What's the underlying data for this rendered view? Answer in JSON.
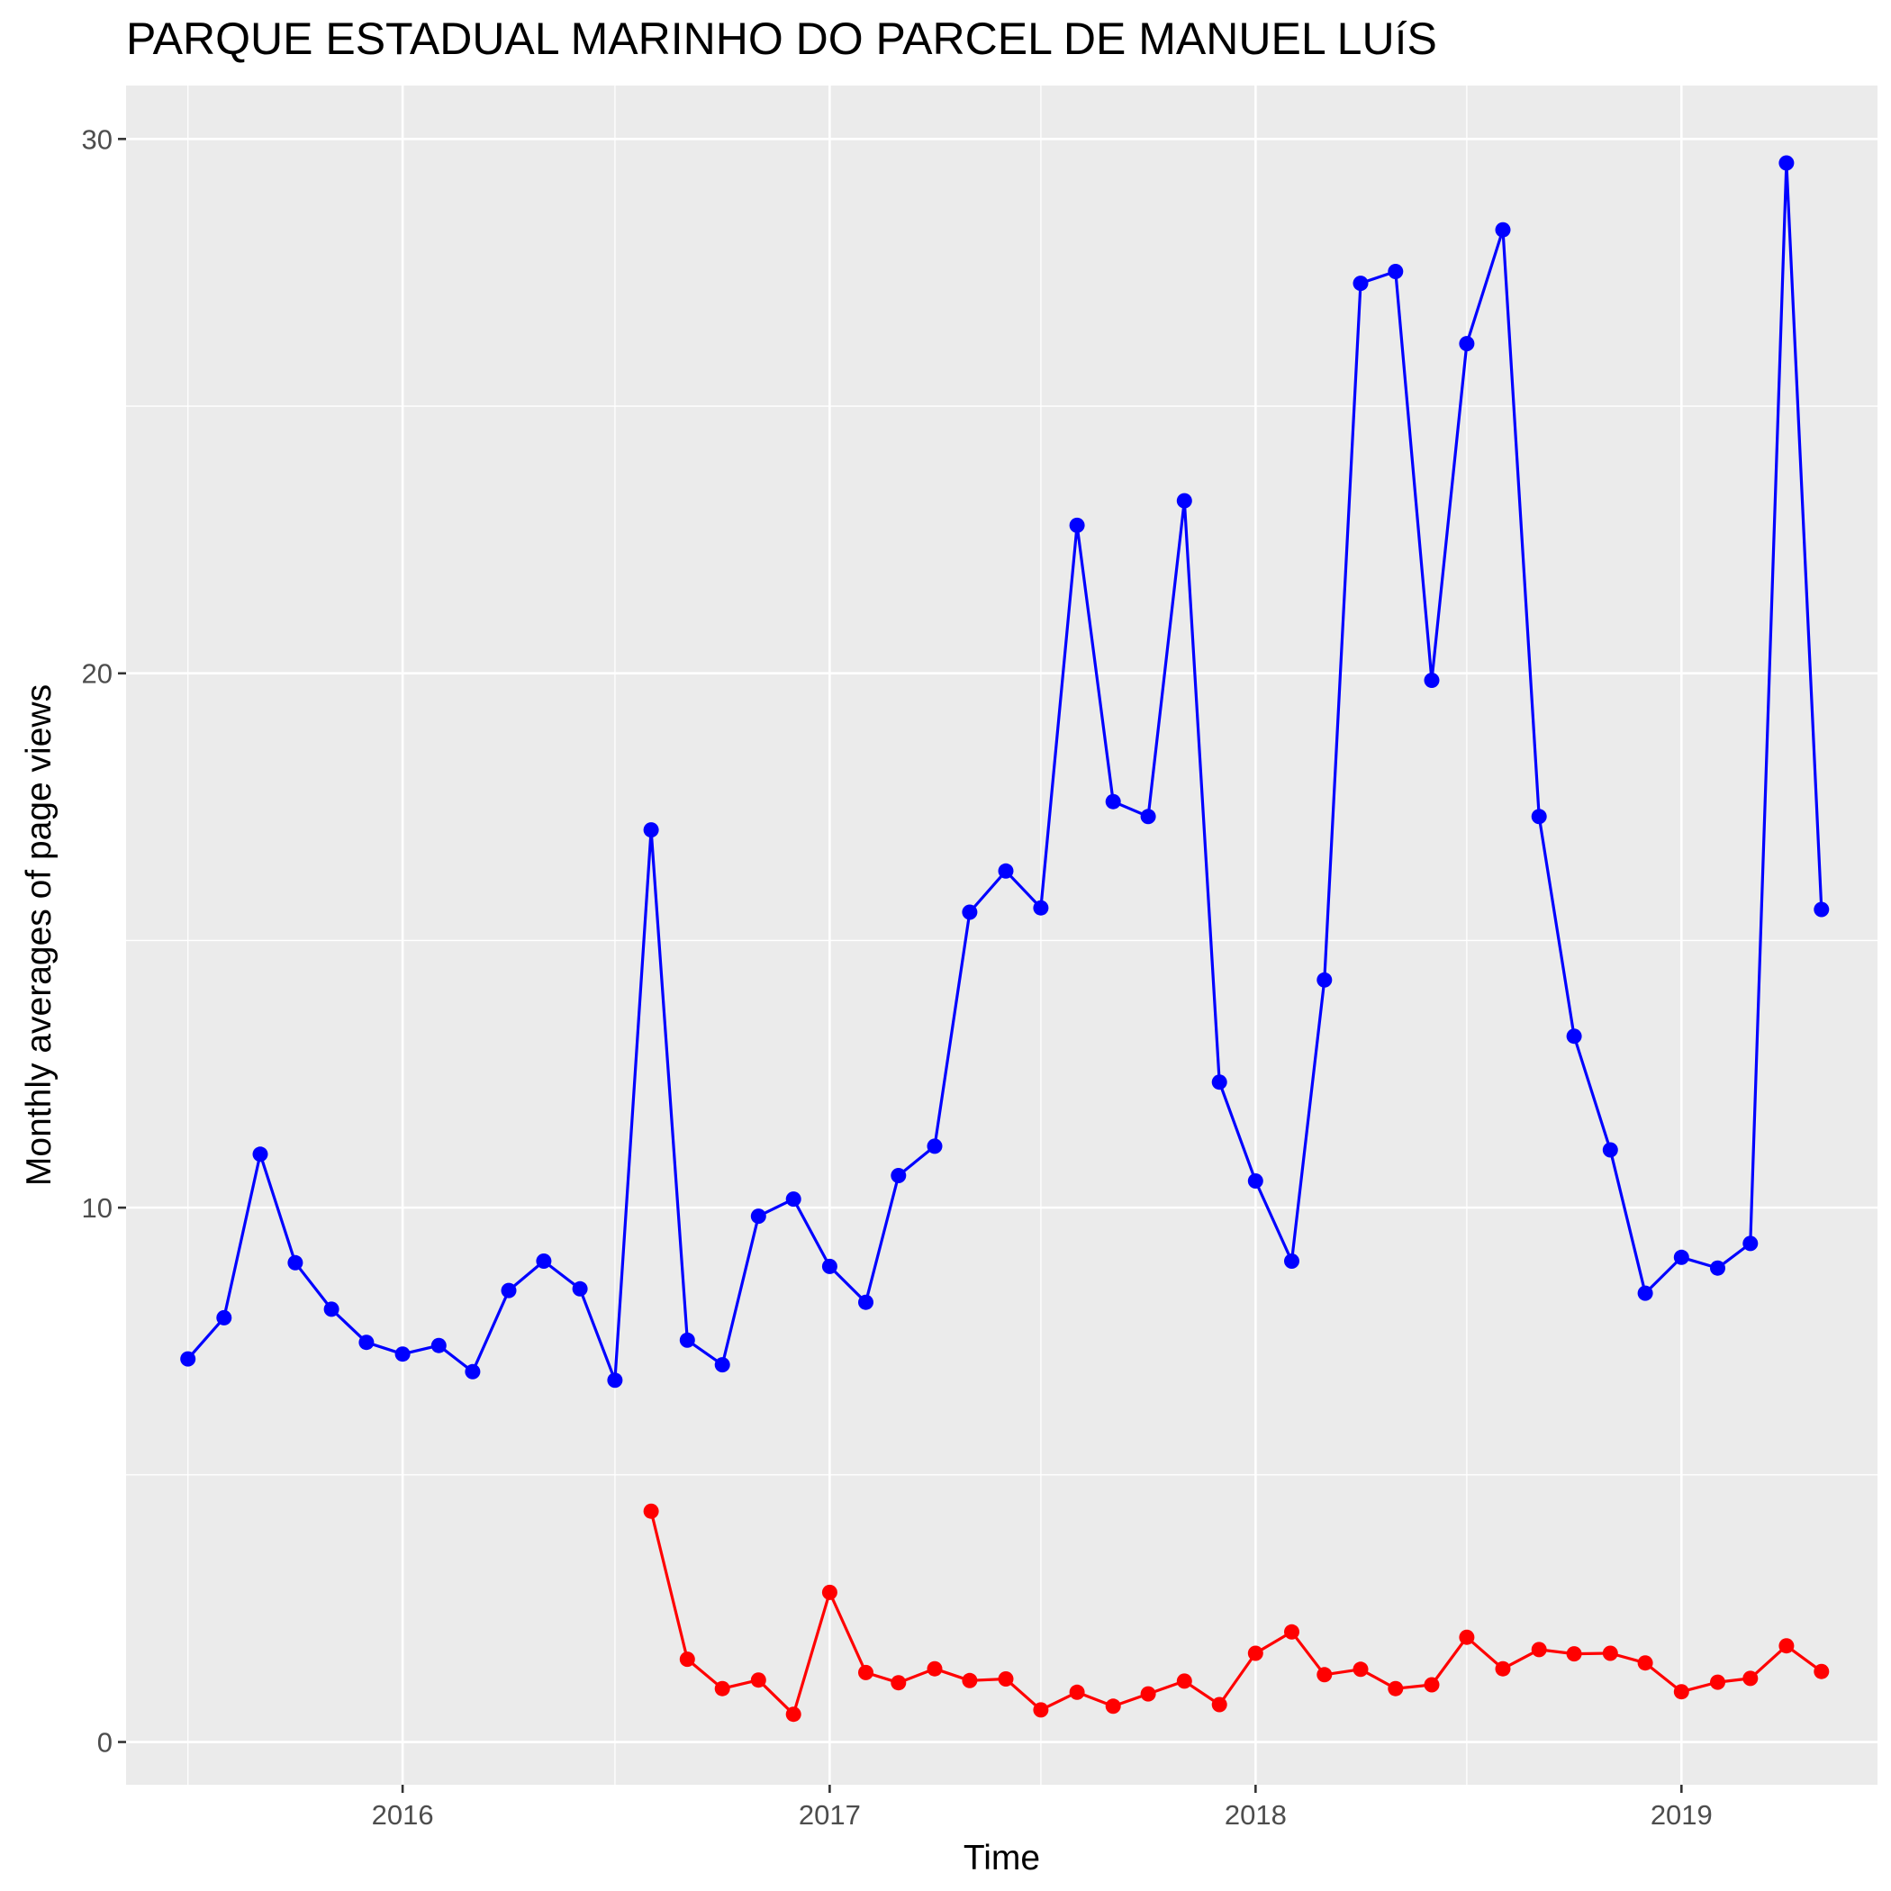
{
  "chart_data": {
    "type": "line",
    "title": "PARQUE ESTADUAL MARINHO DO PARCEL DE MANUEL LUíS",
    "xlabel": "Time",
    "ylabel": "Monthly averages of page views",
    "x_ticks": [
      "2016",
      "2017",
      "2018",
      "2019"
    ],
    "y_ticks": [
      0,
      10,
      20,
      30
    ],
    "ylim": [
      -0.8,
      31.0
    ],
    "xlim": [
      "2015-05-09",
      "2019-06-18"
    ],
    "grid": true,
    "background": "#ebebeb",
    "series": [
      {
        "color": "#0000ff",
        "x": [
          "2015-07-01",
          "2015-08-01",
          "2015-09-01",
          "2015-10-01",
          "2015-11-01",
          "2015-12-01",
          "2016-01-01",
          "2016-02-01",
          "2016-03-01",
          "2016-04-01",
          "2016-05-01",
          "2016-06-01",
          "2016-07-01",
          "2016-08-01",
          "2016-09-01",
          "2016-10-01",
          "2016-11-01",
          "2016-12-01",
          "2017-01-01",
          "2017-02-01",
          "2017-03-01",
          "2017-04-01",
          "2017-05-01",
          "2017-06-01",
          "2017-07-01",
          "2017-08-01",
          "2017-09-01",
          "2017-10-01",
          "2017-11-01",
          "2017-12-01",
          "2018-01-01",
          "2018-02-01",
          "2018-03-01",
          "2018-04-01",
          "2018-05-01",
          "2018-06-01",
          "2018-07-01",
          "2018-08-01",
          "2018-09-01",
          "2018-10-01",
          "2018-11-01",
          "2018-12-01",
          "2019-01-01",
          "2019-02-01",
          "2019-03-01",
          "2019-04-01",
          "2019-05-01"
        ],
        "values": [
          7.17,
          7.94,
          11.0,
          8.97,
          8.1,
          7.48,
          7.26,
          7.42,
          6.93,
          8.45,
          9.0,
          8.48,
          6.77,
          17.07,
          7.52,
          7.06,
          9.84,
          10.16,
          8.9,
          8.23,
          10.6,
          11.15,
          15.53,
          16.3,
          15.61,
          22.77,
          17.6,
          17.32,
          23.23,
          12.35,
          10.5,
          9.0,
          14.26,
          27.3,
          27.52,
          19.87,
          26.17,
          28.3,
          17.32,
          13.21,
          11.08,
          8.4,
          9.07,
          8.87,
          9.33,
          29.55,
          15.58
        ]
      },
      {
        "color": "#ff0000",
        "x": [
          "2016-08-01",
          "2016-09-01",
          "2016-10-01",
          "2016-11-01",
          "2016-12-01",
          "2017-01-01",
          "2017-02-01",
          "2017-03-01",
          "2017-04-01",
          "2017-05-01",
          "2017-06-01",
          "2017-07-01",
          "2017-08-01",
          "2017-09-01",
          "2017-10-01",
          "2017-11-01",
          "2017-12-01",
          "2018-01-01",
          "2018-02-01",
          "2018-03-01",
          "2018-04-01",
          "2018-05-01",
          "2018-06-01",
          "2018-07-01",
          "2018-08-01",
          "2018-09-01",
          "2018-10-01",
          "2018-11-01",
          "2018-12-01",
          "2019-01-01",
          "2019-02-01",
          "2019-03-01",
          "2019-04-01",
          "2019-05-01"
        ],
        "values": [
          4.32,
          1.55,
          1.0,
          1.16,
          0.52,
          2.8,
          1.3,
          1.11,
          1.37,
          1.15,
          1.18,
          0.6,
          0.93,
          0.67,
          0.9,
          1.14,
          0.7,
          1.66,
          2.06,
          1.26,
          1.36,
          1.0,
          1.07,
          1.96,
          1.37,
          1.73,
          1.65,
          1.66,
          1.48,
          0.94,
          1.12,
          1.19,
          1.8,
          1.32
        ]
      }
    ]
  }
}
